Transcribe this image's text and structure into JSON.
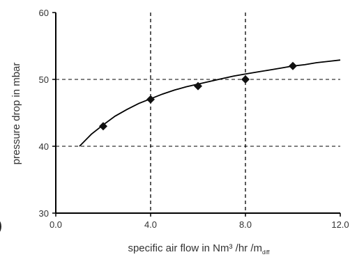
{
  "chart_data": {
    "type": "scatter",
    "title": "",
    "xlabel_main": "specific air flow in Nm³ /hr /m",
    "xlabel_sub": "diff",
    "ylabel": "pressure drop in mbar",
    "xlim": [
      0,
      12
    ],
    "ylim": [
      30,
      60
    ],
    "x_ticks": [
      0,
      4,
      8,
      12
    ],
    "x_tick_labels": [
      "0.0",
      "4.0",
      "8.0",
      "12.0"
    ],
    "y_ticks": [
      30,
      40,
      50,
      60
    ],
    "y_tick_labels": [
      "30",
      "40",
      "50",
      "60"
    ],
    "grid": true,
    "points": {
      "x": [
        2,
        4,
        6,
        8,
        10
      ],
      "y": [
        43,
        47,
        49,
        50,
        52
      ]
    },
    "fit_curve": {
      "x": [
        1.0,
        1.5,
        2.0,
        2.5,
        3.0,
        3.5,
        4.0,
        4.5,
        5.0,
        5.5,
        6.0,
        6.5,
        7.0,
        7.5,
        8.0,
        8.5,
        9.0,
        9.5,
        10.0,
        10.5,
        11.0,
        11.5,
        12.0
      ],
      "y": [
        40.0,
        41.8,
        43.2,
        44.5,
        45.5,
        46.4,
        47.1,
        47.8,
        48.4,
        48.9,
        49.3,
        49.7,
        50.1,
        50.5,
        50.8,
        51.1,
        51.4,
        51.7,
        52.0,
        52.2,
        52.5,
        52.7,
        52.9
      ]
    },
    "colors": {
      "axis": "#000000",
      "grid": "#000000",
      "marker": "#111111",
      "line": "#000000",
      "text": "#333333"
    },
    "stray_mark": ")"
  }
}
